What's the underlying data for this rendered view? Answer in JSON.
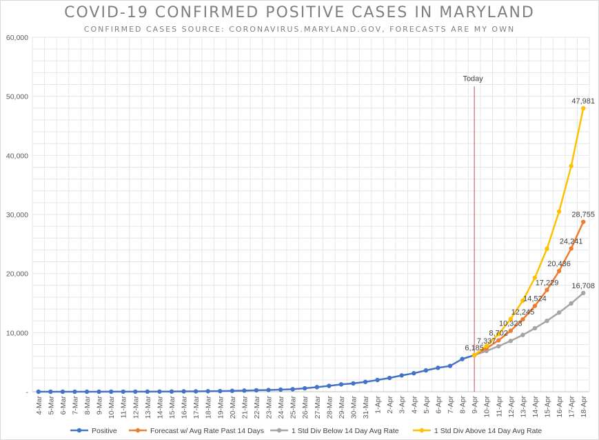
{
  "chart_data": {
    "type": "line",
    "title": "COVID-19 CONFIRMED POSITIVE CASES IN MARYLAND",
    "subtitle": "CONFIRMED CASES SOURCE: CORONAVIRUS.MARYLAND.GOV, FORECASTS ARE MY OWN",
    "categories": [
      "4-Mar",
      "5-Mar",
      "6-Mar",
      "7-Mar",
      "8-Mar",
      "9-Mar",
      "10-Mar",
      "11-Mar",
      "12-Mar",
      "13-Mar",
      "14-Mar",
      "15-Mar",
      "16-Mar",
      "17-Mar",
      "18-Mar",
      "19-Mar",
      "20-Mar",
      "21-Mar",
      "22-Mar",
      "23-Mar",
      "24-Mar",
      "25-Mar",
      "26-Mar",
      "27-Mar",
      "28-Mar",
      "29-Mar",
      "30-Mar",
      "31-Mar",
      "1-Apr",
      "2-Apr",
      "3-Apr",
      "4-Apr",
      "5-Apr",
      "6-Apr",
      "7-Apr",
      "8-Apr",
      "9-Apr",
      "10-Apr",
      "11-Apr",
      "12-Apr",
      "13-Apr",
      "14-Apr",
      "15-Apr",
      "16-Apr",
      "17-Apr",
      "18-Apr"
    ],
    "ylim": [
      0,
      60000
    ],
    "yticks": [
      "-",
      "10,000",
      "20,000",
      "30,000",
      "40,000",
      "50,000",
      "60,000"
    ],
    "grid": true,
    "legend_position": "bottom",
    "today_label": "Today",
    "today_category": "9-Apr",
    "series": [
      {
        "name": "Positive",
        "color": "#4472C4",
        "x": [
          "4-Mar",
          "5-Mar",
          "6-Mar",
          "7-Mar",
          "8-Mar",
          "9-Mar",
          "10-Mar",
          "11-Mar",
          "12-Mar",
          "13-Mar",
          "14-Mar",
          "15-Mar",
          "16-Mar",
          "17-Mar",
          "18-Mar",
          "19-Mar",
          "20-Mar",
          "21-Mar",
          "22-Mar",
          "23-Mar",
          "24-Mar",
          "25-Mar",
          "26-Mar",
          "27-Mar",
          "28-Mar",
          "29-Mar",
          "30-Mar",
          "31-Mar",
          "1-Apr",
          "2-Apr",
          "3-Apr",
          "4-Apr",
          "5-Apr",
          "6-Apr",
          "7-Apr",
          "8-Apr",
          "9-Apr"
        ],
        "values": [
          0,
          0,
          0,
          3,
          3,
          5,
          8,
          9,
          12,
          17,
          26,
          37,
          57,
          60,
          85,
          107,
          149,
          190,
          244,
          288,
          349,
          423,
          580,
          774,
          992,
          1239,
          1413,
          1660,
          1985,
          2331,
          2758,
          3125,
          3609,
          4045,
          4371,
          5529,
          6185
        ],
        "labels": {}
      },
      {
        "name": "Forecast w/ Avg Rate Past 14 Days",
        "color": "#ED7D31",
        "x": [
          "9-Apr",
          "10-Apr",
          "11-Apr",
          "12-Apr",
          "13-Apr",
          "14-Apr",
          "15-Apr",
          "16-Apr",
          "17-Apr",
          "18-Apr"
        ],
        "values": [
          6185,
          7337,
          8702,
          10323,
          12245,
          14524,
          17229,
          20436,
          24241,
          28755
        ],
        "labels": {
          "9-Apr": "6,185",
          "10-Apr": "7,337",
          "11-Apr": "8,702",
          "12-Apr": "10,323",
          "13-Apr": "12,245",
          "14-Apr": "14,524",
          "15-Apr": "17,229",
          "16-Apr": "20,436",
          "17-Apr": "24,241",
          "18-Apr": "28,755"
        }
      },
      {
        "name": "1 Std Div Below 14 Day Avg Rate",
        "color": "#A5A5A5",
        "x": [
          "9-Apr",
          "10-Apr",
          "11-Apr",
          "12-Apr",
          "13-Apr",
          "14-Apr",
          "15-Apr",
          "16-Apr",
          "17-Apr",
          "18-Apr"
        ],
        "values": [
          6185,
          6900,
          7700,
          8600,
          9600,
          10750,
          12000,
          13400,
          14950,
          16708
        ],
        "labels": {
          "18-Apr": "16,708"
        }
      },
      {
        "name": "1 Std Div Above 14 Day Avg Rate",
        "color": "#FFC000",
        "x": [
          "9-Apr",
          "10-Apr",
          "11-Apr",
          "12-Apr",
          "13-Apr",
          "14-Apr",
          "15-Apr",
          "16-Apr",
          "17-Apr",
          "18-Apr"
        ],
        "values": [
          6185,
          7750,
          9750,
          12300,
          15400,
          19300,
          24200,
          30500,
          38200,
          47981
        ],
        "labels": {
          "18-Apr": "47,981"
        }
      }
    ]
  }
}
